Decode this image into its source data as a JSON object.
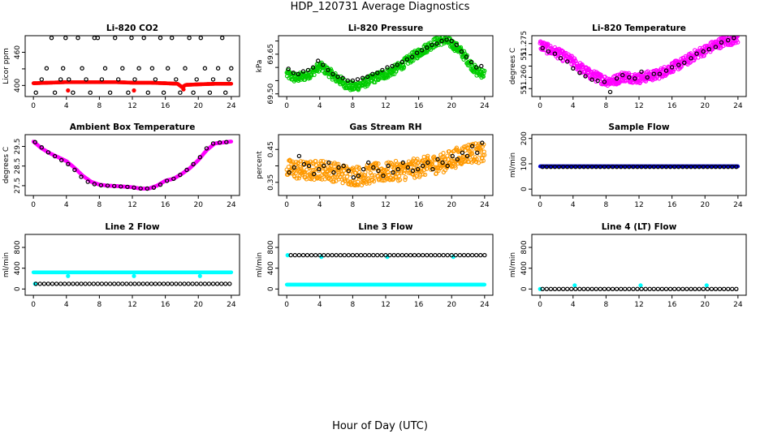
{
  "figure": {
    "title": "HDP_120731  Average Diagnostics",
    "xlabel": "Hour of Day (UTC)"
  },
  "chart_data": [
    {
      "type": "scatter",
      "title": "Li-820 CO2",
      "ylabel": "Licor ppm",
      "xlim": [
        -1,
        25
      ],
      "ylim": [
        380,
        490
      ],
      "xticks": [
        0,
        4,
        8,
        12,
        16,
        20,
        24
      ],
      "yticks": [
        400,
        430,
        460
      ],
      "yticklabels": [
        "400",
        "",
        "460"
      ],
      "series": [
        {
          "color": "#ff0000",
          "kind": "dense",
          "x": [
            0,
            2,
            4,
            6,
            8,
            10,
            12,
            14,
            16,
            17.5,
            18,
            18.5,
            20,
            22,
            24
          ],
          "y": [
            404,
            405,
            406,
            406,
            406,
            406,
            405,
            405,
            404,
            403,
            397,
            401,
            402,
            403,
            403
          ]
        },
        {
          "color": "#ff0000",
          "kind": "points",
          "x": [
            4.2,
            12.2,
            18.2
          ],
          "y": [
            391,
            391,
            393
          ]
        },
        {
          "color": "#000000",
          "kind": "open",
          "x": [
            0.3,
            1,
            1.6,
            2.2,
            2.6,
            3.3,
            3.6,
            3.9,
            4.3,
            4.8,
            5.4,
            5.9,
            6.4,
            6.9,
            7.4,
            7.8,
            8.3,
            8.7,
            9.3,
            9.9,
            10.3,
            10.8,
            11.5,
            11.9,
            12.3,
            12.8,
            13.4,
            13.9,
            14.4,
            14.8,
            15.4,
            15.8,
            16.3,
            16.8,
            17.3,
            17.8,
            18.4,
            18.9,
            19.4,
            19.8,
            20.3,
            20.8,
            21.4,
            21.8,
            22.4,
            22.9,
            23.3,
            23.7,
            24
          ],
          "y": [
            387,
            411,
            431,
            486,
            387,
            411,
            431,
            486,
            411,
            387,
            486,
            431,
            411,
            387,
            486,
            486,
            411,
            431,
            387,
            486,
            411,
            431,
            387,
            486,
            411,
            431,
            486,
            387,
            431,
            411,
            486,
            387,
            431,
            486,
            411,
            387,
            431,
            486,
            387,
            411,
            486,
            431,
            387,
            411,
            431,
            486,
            387,
            411,
            431
          ]
        }
      ]
    },
    {
      "type": "scatter",
      "title": "Li-820 Pressure",
      "ylabel": "kPa",
      "xlim": [
        -1,
        25
      ],
      "ylim": [
        69.49,
        69.72
      ],
      "xticks": [
        0,
        4,
        8,
        12,
        16,
        20,
        24
      ],
      "yticks": [
        69.5,
        69.55,
        69.6,
        69.65,
        69.7
      ],
      "yticklabels": [
        "69.50",
        "",
        "",
        "69.65",
        ""
      ],
      "series": [
        {
          "color": "#00cc00",
          "kind": "band",
          "width": 0.035,
          "x": [
            0,
            1,
            2,
            3,
            4,
            5,
            6,
            7,
            8,
            9,
            10,
            11,
            12,
            13,
            14,
            15,
            16,
            17,
            18,
            19,
            20,
            21,
            22,
            23,
            24
          ],
          "y": [
            69.575,
            69.56,
            69.565,
            69.58,
            69.605,
            69.585,
            69.56,
            69.54,
            69.525,
            69.535,
            69.55,
            69.565,
            69.575,
            69.59,
            69.61,
            69.635,
            69.655,
            69.675,
            69.695,
            69.705,
            69.69,
            69.665,
            69.625,
            69.585,
            69.575
          ]
        },
        {
          "color": "#000000",
          "kind": "open",
          "x": [
            0.2,
            0.8,
            1.4,
            2,
            2.6,
            3.2,
            3.8,
            4.4,
            5,
            5.6,
            6.2,
            6.8,
            7.4,
            8,
            8.6,
            9.2,
            9.8,
            10.4,
            11,
            11.6,
            12.2,
            12.8,
            13.4,
            14,
            14.6,
            15.2,
            15.8,
            16.4,
            17,
            17.6,
            18.2,
            18.8,
            19.4,
            20,
            20.6,
            21.2,
            21.8,
            22.4,
            23,
            23.6
          ],
          "y": [
            69.595,
            69.58,
            69.575,
            69.585,
            69.59,
            69.6,
            69.625,
            69.61,
            69.59,
            69.575,
            69.565,
            69.56,
            69.55,
            69.55,
            69.555,
            69.56,
            69.565,
            69.575,
            69.58,
            69.59,
            69.6,
            69.605,
            69.61,
            69.62,
            69.63,
            69.64,
            69.655,
            69.665,
            69.675,
            69.685,
            69.69,
            69.7,
            69.705,
            69.7,
            69.685,
            69.66,
            69.64,
            69.62,
            69.6,
            69.605
          ]
        }
      ]
    },
    {
      "type": "scatter",
      "title": "Li-820 Temperature",
      "ylabel": "degrees C",
      "xlim": [
        -1,
        25
      ],
      "ylim": [
        51.2515,
        51.2785
      ],
      "xticks": [
        0,
        4,
        8,
        12,
        16,
        20,
        24
      ],
      "yticks": [
        51.255,
        51.26,
        51.265,
        51.27,
        51.275
      ],
      "yticklabels": [
        "51.",
        "51.260",
        "",
        "51.",
        "51.275"
      ],
      "series": [
        {
          "color": "#ff00ff",
          "kind": "band",
          "width": 0.0045,
          "x": [
            0,
            1,
            2,
            3,
            4,
            5,
            6,
            7,
            8,
            9,
            10,
            11,
            12,
            13,
            14,
            15,
            16,
            17,
            18,
            19,
            20,
            21,
            22,
            23,
            24
          ],
          "y": [
            51.2745,
            51.2725,
            51.271,
            51.269,
            51.267,
            51.264,
            51.2615,
            51.26,
            51.2585,
            51.2585,
            51.2605,
            51.26,
            51.2595,
            51.2605,
            51.261,
            51.2625,
            51.2645,
            51.266,
            51.268,
            51.2705,
            51.272,
            51.274,
            51.2755,
            51.2765,
            51.2775
          ]
        },
        {
          "color": "#000000",
          "kind": "open",
          "x": [
            0.3,
            1,
            1.8,
            2.5,
            3.3,
            4,
            4.8,
            5.5,
            6.3,
            7,
            7.8,
            8.5,
            9.3,
            10,
            10.8,
            11.5,
            12.3,
            13,
            13.8,
            14.5,
            15.3,
            16,
            16.8,
            17.5,
            18.3,
            19,
            19.8,
            20.5,
            21.3,
            22,
            22.8,
            23.5
          ],
          "y": [
            51.273,
            51.2715,
            51.2705,
            51.2685,
            51.267,
            51.264,
            51.262,
            51.2605,
            51.259,
            51.2585,
            51.258,
            51.2535,
            51.2595,
            51.261,
            51.26,
            51.2595,
            51.2625,
            51.26,
            51.2615,
            51.2615,
            51.263,
            51.2645,
            51.2655,
            51.2665,
            51.2685,
            51.2705,
            51.2715,
            51.2725,
            51.2735,
            51.2755,
            51.2765,
            51.2775
          ]
        }
      ]
    },
    {
      "type": "scatter",
      "title": "Ambient Box Temperature",
      "ylabel": "degrees C",
      "xlim": [
        -1,
        25
      ],
      "ylim": [
        27.0,
        30.1
      ],
      "xticks": [
        0,
        4,
        8,
        12,
        16,
        20,
        24
      ],
      "yticks": [
        27.5,
        28.5,
        29.5
      ],
      "yticklabels": [
        "27.5",
        "28.5",
        "29.5"
      ],
      "series": [
        {
          "color": "#ff00ff",
          "kind": "dense",
          "x": [
            0,
            1,
            2,
            3,
            4,
            5,
            6,
            7,
            8,
            9,
            10,
            11,
            12,
            13,
            14,
            15,
            16,
            17,
            18,
            19,
            20,
            21,
            22,
            23,
            24
          ],
          "y": [
            29.75,
            29.4,
            29.15,
            28.95,
            28.75,
            28.4,
            28.0,
            27.7,
            27.55,
            27.5,
            27.48,
            27.45,
            27.42,
            27.35,
            27.35,
            27.5,
            27.75,
            27.85,
            28.1,
            28.4,
            28.8,
            29.3,
            29.65,
            29.7,
            29.75
          ]
        },
        {
          "color": "#000000",
          "kind": "open",
          "x": [
            0.2,
            1,
            1.8,
            2.6,
            3.4,
            4.2,
            5,
            5.8,
            6.6,
            7.4,
            8.2,
            9,
            9.8,
            10.6,
            11.4,
            12.2,
            13,
            13.8,
            14.6,
            15.4,
            16.2,
            17,
            17.8,
            18.6,
            19.4,
            20.2,
            21,
            21.8,
            22.6,
            23.4
          ],
          "y": [
            29.72,
            29.45,
            29.2,
            29.0,
            28.8,
            28.6,
            28.3,
            27.95,
            27.7,
            27.58,
            27.52,
            27.5,
            27.48,
            27.46,
            27.44,
            27.4,
            27.36,
            27.35,
            27.4,
            27.55,
            27.75,
            27.85,
            28.05,
            28.3,
            28.6,
            28.95,
            29.4,
            29.65,
            29.7,
            29.72
          ]
        }
      ]
    },
    {
      "type": "scatter",
      "title": "Gas Stream RH",
      "ylabel": "percent",
      "xlim": [
        -1,
        25
      ],
      "ylim": [
        0.31,
        0.495
      ],
      "xticks": [
        0,
        4,
        8,
        12,
        16,
        20,
        24
      ],
      "yticks": [
        0.35,
        0.4,
        0.45
      ],
      "yticklabels": [
        "0.35",
        "",
        "0.45"
      ],
      "series": [
        {
          "color": "#ff9900",
          "kind": "band",
          "width": 0.06,
          "x": [
            0,
            1,
            2,
            3,
            4,
            5,
            6,
            7,
            8,
            9,
            10,
            11,
            12,
            13,
            14,
            15,
            16,
            17,
            18,
            19,
            20,
            21,
            22,
            23,
            24
          ],
          "y": [
            0.39,
            0.39,
            0.385,
            0.385,
            0.39,
            0.385,
            0.38,
            0.375,
            0.37,
            0.37,
            0.375,
            0.38,
            0.38,
            0.385,
            0.385,
            0.39,
            0.395,
            0.4,
            0.405,
            0.41,
            0.42,
            0.43,
            0.44,
            0.44,
            0.435
          ]
        },
        {
          "color": "#000000",
          "kind": "open",
          "x": [
            0.3,
            0.9,
            1.5,
            2.1,
            2.7,
            3.3,
            3.9,
            4.5,
            5.1,
            5.7,
            6.3,
            6.9,
            7.5,
            8.1,
            8.7,
            9.3,
            9.9,
            10.5,
            11.1,
            11.7,
            12.3,
            12.9,
            13.5,
            14.1,
            14.7,
            15.3,
            15.9,
            16.5,
            17.1,
            17.7,
            18.3,
            18.9,
            19.5,
            20.1,
            20.7,
            21.3,
            21.9,
            22.5,
            23.1,
            23.7
          ],
          "y": [
            0.38,
            0.395,
            0.43,
            0.405,
            0.4,
            0.375,
            0.39,
            0.4,
            0.41,
            0.38,
            0.395,
            0.4,
            0.385,
            0.365,
            0.37,
            0.39,
            0.41,
            0.395,
            0.385,
            0.37,
            0.4,
            0.38,
            0.39,
            0.41,
            0.395,
            0.385,
            0.39,
            0.4,
            0.41,
            0.39,
            0.42,
            0.41,
            0.4,
            0.43,
            0.42,
            0.44,
            0.43,
            0.46,
            0.44,
            0.47
          ]
        }
      ]
    },
    {
      "type": "scatter",
      "title": "Sample Flow",
      "ylabel": "ml/min",
      "xlim": [
        -1,
        25
      ],
      "ylim": [
        -25,
        215
      ],
      "xticks": [
        0,
        4,
        8,
        12,
        16,
        20,
        24
      ],
      "yticks": [
        0,
        100,
        200
      ],
      "yticklabels": [
        "0",
        "100",
        "200"
      ],
      "series": [
        {
          "color": "#0000cc",
          "kind": "dense",
          "x": [
            0,
            24
          ],
          "y": [
            90,
            90
          ]
        },
        {
          "color": "#000000",
          "kind": "open",
          "x_start": 0.3,
          "x_step": 0.5,
          "x_end": 24,
          "y_const": 88
        }
      ]
    },
    {
      "type": "scatter",
      "title": "Line 2 Flow",
      "ylabel": "ml/min",
      "xlim": [
        -1,
        25
      ],
      "ylim": [
        -120,
        1050
      ],
      "xticks": [
        0,
        4,
        8,
        12,
        16,
        20,
        24
      ],
      "yticks": [
        0,
        400,
        800
      ],
      "yticklabels": [
        "0",
        "400",
        "800"
      ],
      "series": [
        {
          "color": "#00ffff",
          "kind": "dense",
          "x": [
            0,
            24
          ],
          "y": [
            320,
            320
          ]
        },
        {
          "color": "#00ffff",
          "kind": "points",
          "x": [
            4.2,
            12.2,
            20.2
          ],
          "y": [
            250,
            250,
            250
          ]
        },
        {
          "color": "#00ffff",
          "kind": "points",
          "x": [
            0.2
          ],
          "y": [
            100
          ]
        },
        {
          "color": "#000000",
          "kind": "open",
          "x_start": 0.3,
          "x_step": 0.5,
          "x_end": 24,
          "y_const": 100
        }
      ]
    },
    {
      "type": "scatter",
      "title": "Line 3 Flow",
      "ylabel": "ml/min",
      "xlim": [
        -1,
        25
      ],
      "ylim": [
        -120,
        1050
      ],
      "xticks": [
        0,
        4,
        8,
        12,
        16,
        20,
        24
      ],
      "yticks": [
        0,
        400,
        800
      ],
      "yticklabels": [
        "0",
        "400",
        "800"
      ],
      "series": [
        {
          "color": "#00ffff",
          "kind": "dense",
          "x": [
            0,
            24
          ],
          "y": [
            85,
            85
          ]
        },
        {
          "color": "#00ffff",
          "kind": "points",
          "x": [
            0.1,
            4.2,
            12.2,
            20.2
          ],
          "y": [
            650,
            620,
            620,
            620
          ]
        },
        {
          "color": "#000000",
          "kind": "open",
          "x_start": 0.5,
          "x_step": 0.5,
          "x_end": 24,
          "y_const": 650
        }
      ]
    },
    {
      "type": "scatter",
      "title": "Line 4 (LT) Flow",
      "ylabel": "ml/min",
      "xlim": [
        -1,
        25
      ],
      "ylim": [
        -120,
        1050
      ],
      "xticks": [
        0,
        4,
        8,
        12,
        16,
        20,
        24
      ],
      "yticks": [
        0,
        400,
        800
      ],
      "yticklabels": [
        "0",
        "400",
        "800"
      ],
      "series": [
        {
          "color": "#00ffff",
          "kind": "points",
          "x": [
            0,
            4.2,
            12.2,
            20.2
          ],
          "y": [
            0,
            70,
            70,
            70
          ]
        },
        {
          "color": "#000000",
          "kind": "open",
          "x_start": 0.3,
          "x_step": 0.5,
          "x_end": 24,
          "y_const": 0
        }
      ]
    }
  ]
}
